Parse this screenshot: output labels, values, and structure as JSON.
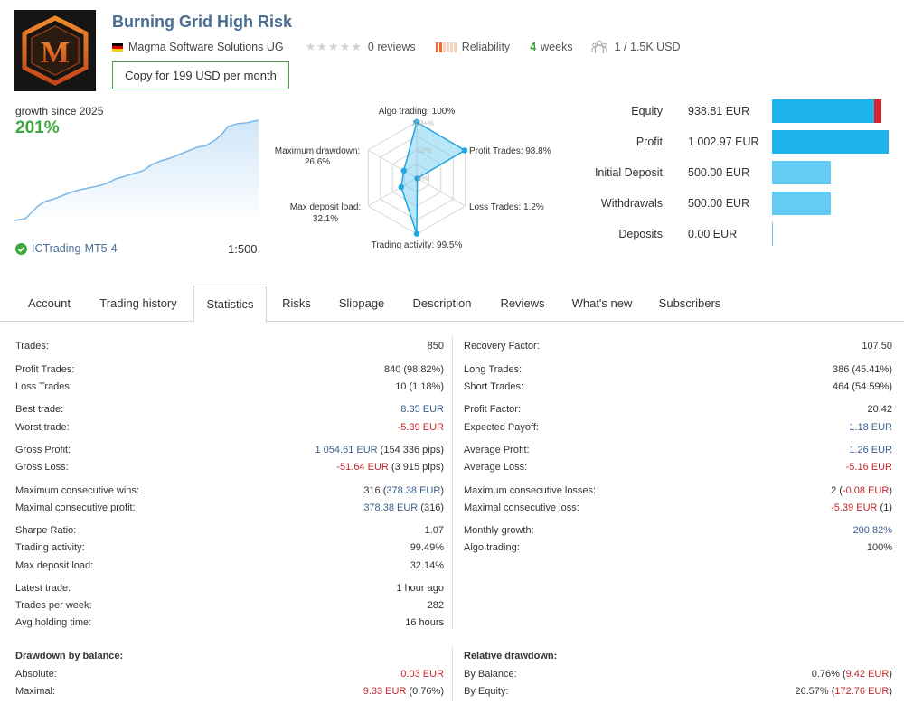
{
  "header": {
    "title": "Burning Grid High Risk",
    "author": "Magma Software Solutions UG",
    "reviews": "0 reviews",
    "reliability_label": "Reliability",
    "weeks_num": "4",
    "weeks_label": "weeks",
    "subscribers": "1 / 1.5K USD",
    "copy_button": "Copy for 199 USD per month",
    "logo_letter": "M"
  },
  "growth": {
    "label": "growth since 2025",
    "value": "201%",
    "broker": "ICTrading-MT5-4",
    "leverage": "1:500"
  },
  "radar": {
    "algo_trading": "Algo trading: 100%",
    "profit_trades": "Profit Trades: 98.8%",
    "loss_trades": "Loss Trades: 1.2%",
    "trading_activity": "Trading activity: 99.5%",
    "max_deposit_load_l1": "Max deposit load:",
    "max_deposit_load_l2": "32.1%",
    "max_drawdown_l1": "Maximum drawdown:",
    "max_drawdown_l2": "26.6%",
    "tick_100": "100+%",
    "tick_50": "50%",
    "tick_0": "0%",
    "values": [
      100,
      98.8,
      1.2,
      99.5,
      32.1,
      26.6
    ]
  },
  "balance": {
    "rows": [
      {
        "label": "Equity",
        "value": "938.81 EUR",
        "share": 0.94
      },
      {
        "label": "Profit",
        "value": "1 002.97 EUR",
        "share": 1.0
      },
      {
        "label": "Initial Deposit",
        "value": "500.00 EUR",
        "share": 0.5
      },
      {
        "label": "Withdrawals",
        "value": "500.00 EUR",
        "share": 0.5
      },
      {
        "label": "Deposits",
        "value": "0.00 EUR",
        "share": 0.0
      }
    ],
    "color_dark": "#1fb3ec",
    "color_light": "#62ccf3",
    "color_loss": "#d9232d"
  },
  "tabs": [
    "Account",
    "Trading history",
    "Statistics",
    "Risks",
    "Slippage",
    "Description",
    "Reviews",
    "What's new",
    "Subscribers"
  ],
  "stats_left": [
    {
      "label": "Trades:",
      "value": "850"
    },
    {
      "label": "Profit Trades:",
      "value": "840 (98.82%)"
    },
    {
      "label": "Loss Trades:",
      "value": "10 (1.18%)"
    },
    {
      "label": "Best trade:",
      "value": "8.35 EUR"
    },
    {
      "label": "Worst trade:",
      "value": "-5.39 EUR"
    },
    {
      "label": "Gross Profit:",
      "value_a": "1 054.61 EUR",
      "value_b": " (154 336 pips)"
    },
    {
      "label": "Gross Loss:",
      "value_a": "-51.64 EUR",
      "value_b": " (3 915 pips)"
    },
    {
      "label": "Maximum consecutive wins:",
      "value_a": "316 (",
      "value_b": "378.38 EUR",
      "value_c": ")"
    },
    {
      "label": "Maximal consecutive profit:",
      "value_a": "378.38 EUR",
      "value_b": " (316)"
    },
    {
      "label": "Sharpe Ratio:",
      "value": "1.07"
    },
    {
      "label": "Trading activity:",
      "value": "99.49%"
    },
    {
      "label": "Max deposit load:",
      "value": "32.14%"
    },
    {
      "label": "Latest trade:",
      "value": "1 hour ago"
    },
    {
      "label": "Trades per week:",
      "value": "282"
    },
    {
      "label": "Avg holding time:",
      "value": "16 hours"
    }
  ],
  "stats_right": [
    {
      "label": "Recovery Factor:",
      "value": "107.50"
    },
    {
      "label": "Long Trades:",
      "value": "386 (45.41%)"
    },
    {
      "label": "Short Trades:",
      "value": "464 (54.59%)"
    },
    {
      "label": "Profit Factor:",
      "value": "20.42"
    },
    {
      "label": "Expected Payoff:",
      "value": "1.18 EUR"
    },
    {
      "label": "Average Profit:",
      "value": "1.26 EUR"
    },
    {
      "label": "Average Loss:",
      "value": "-5.16 EUR"
    },
    {
      "label": "Maximum consecutive losses:",
      "value_a": "2 (",
      "value_b": "-0.08 EUR",
      "value_c": ")"
    },
    {
      "label": "Maximal consecutive loss:",
      "value_a": "-5.39 EUR",
      "value_b": " (1)"
    },
    {
      "label": "Monthly growth:",
      "value": "200.82%"
    },
    {
      "label": "Algo trading:",
      "value": "100%"
    }
  ],
  "drawdown": {
    "balance_title": "Drawdown by balance:",
    "absolute_label": "Absolute:",
    "absolute_value": "0.03 EUR",
    "maximal_label": "Maximal:",
    "maximal_a": "9.33 EUR",
    "maximal_b": " (0.76%)",
    "relative_title": "Relative drawdown:",
    "by_balance_label": "By Balance:",
    "by_balance_a": "0.76% (",
    "by_balance_b": "9.42 EUR",
    "by_balance_c": ")",
    "by_equity_label": "By Equity:",
    "by_equity_a": "26.57% (",
    "by_equity_b": "172.76 EUR",
    "by_equity_c": ")"
  },
  "icons": {
    "flag": "germany-flag-icon",
    "star": "star-icon",
    "subscribers": "subscribers-icon",
    "check": "verified-check-icon"
  }
}
